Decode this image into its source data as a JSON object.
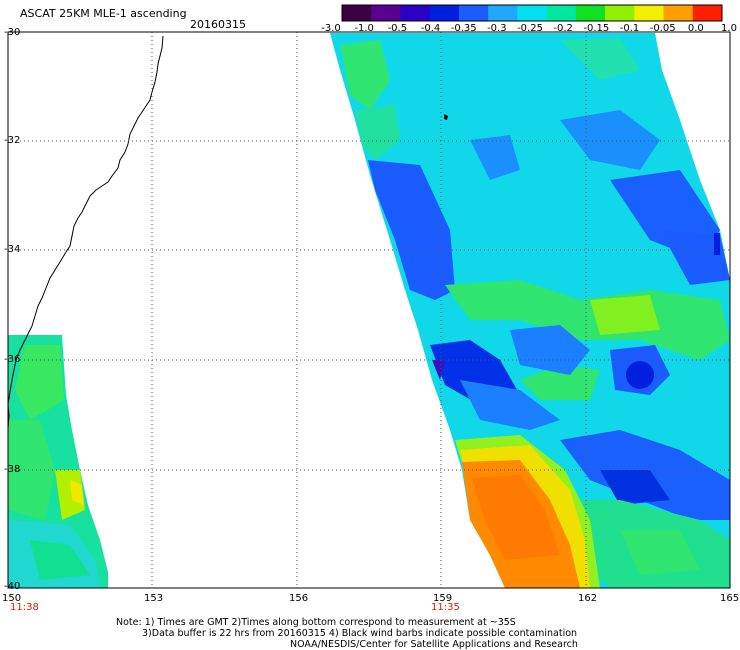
{
  "header": {
    "title": "ASCAT 25KM MLE-1 ascending",
    "date": "20160315"
  },
  "colorbar": {
    "labels": [
      "-3.0",
      "-1.0",
      "-0.5",
      "-0.4",
      "-0.35",
      "-0.3",
      "-0.25",
      "-0.2",
      "-0.15",
      "-0.1",
      "-0.05",
      "0.0",
      "1.0"
    ],
    "colors": [
      "#3b0040",
      "#5a0090",
      "#2a00c8",
      "#0020e0",
      "#1a5cff",
      "#1fa8ff",
      "#00e0f0",
      "#00e8a0",
      "#10e020",
      "#90f000",
      "#f0f000",
      "#ffa000",
      "#ff2000"
    ]
  },
  "map": {
    "lat_labels": [
      "-30",
      "-32",
      "-34",
      "-36",
      "-38",
      "-40"
    ],
    "lon_labels": [
      "150",
      "153",
      "156",
      "159",
      "162",
      "165"
    ],
    "time_labels": [
      "11:38",
      "11:35"
    ]
  },
  "footer": {
    "line1": "Note: 1) Times are GMT 2)Times along bottom correspond to measurement at ~35S",
    "line2": "3)Data buffer is 22 hrs from 20160315 4) Black wind barbs indicate possible contamination",
    "line3": "NOAA/NESDIS/Center for Satellite Applications and Research"
  }
}
